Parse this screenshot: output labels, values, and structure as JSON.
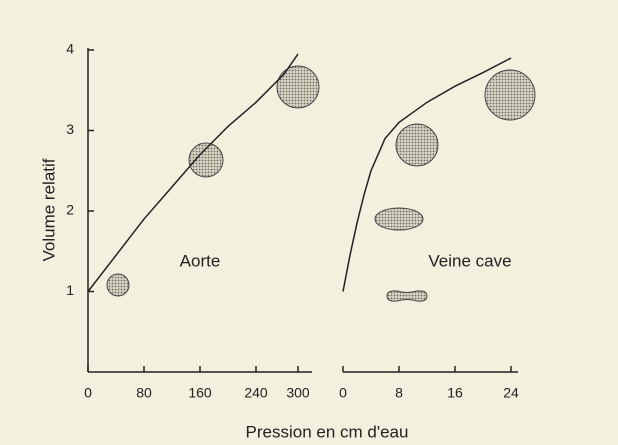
{
  "y_label": "Volume relatif",
  "x_label": "Pression en cm d'eau",
  "chart_data": [
    {
      "type": "line",
      "annotation": "Aorte",
      "color": "#222222",
      "x": [
        0,
        40,
        80,
        120,
        160,
        200,
        240,
        280,
        300
      ],
      "values": [
        1,
        1.45,
        1.9,
        2.3,
        2.7,
        3.05,
        3.35,
        3.7,
        3.95
      ],
      "xlim": [
        0,
        320
      ],
      "xticks": [
        0,
        80,
        160,
        240,
        300
      ],
      "ylim": [
        0,
        4
      ],
      "yticks": [
        1,
        2,
        3,
        4
      ]
    },
    {
      "type": "line",
      "annotation": "Veine cave",
      "color": "#222222",
      "x": [
        0,
        1,
        2,
        3,
        4,
        6,
        8,
        12,
        16,
        20,
        24
      ],
      "values": [
        1,
        1.45,
        1.85,
        2.2,
        2.5,
        2.9,
        3.1,
        3.35,
        3.55,
        3.72,
        3.9
      ],
      "xlim": [
        0,
        25
      ],
      "xticks": [
        0,
        8,
        16,
        24
      ],
      "ylim": [
        0,
        4
      ]
    }
  ]
}
